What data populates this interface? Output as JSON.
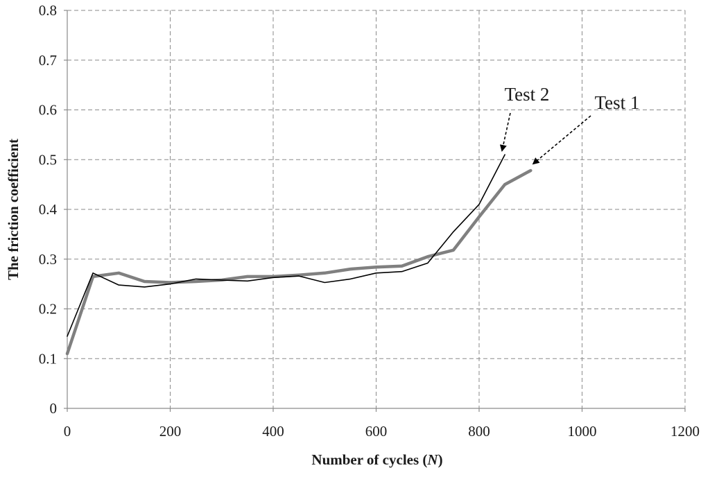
{
  "chart_data": {
    "type": "line",
    "title": "",
    "xlabel": "Number of cycles (",
    "xlabel_var": "N",
    "xlabel_end": ")",
    "ylabel": "The friction coefficient",
    "xlim": [
      0,
      1200
    ],
    "ylim": [
      0,
      0.8
    ],
    "xticks": [
      0,
      200,
      400,
      600,
      800,
      1000,
      1200
    ],
    "yticks": [
      0,
      0.1,
      0.2,
      0.3,
      0.4,
      0.5,
      0.6,
      0.7,
      0.8
    ],
    "xtick_labels": [
      "0",
      "200",
      "400",
      "600",
      "800",
      "1000",
      "1200"
    ],
    "ytick_labels": [
      "0",
      "0.1",
      "0.2",
      "0.3",
      "0.4",
      "0.5",
      "0.6",
      "0.7",
      "0.8"
    ],
    "grid": true,
    "legend": "none",
    "series": [
      {
        "name": "Test 1",
        "color": "#808080",
        "x": [
          0,
          50,
          100,
          150,
          200,
          250,
          300,
          350,
          400,
          450,
          500,
          550,
          600,
          650,
          700,
          750,
          800,
          850,
          900
        ],
        "y": [
          0.11,
          0.265,
          0.272,
          0.255,
          0.253,
          0.255,
          0.258,
          0.265,
          0.265,
          0.268,
          0.272,
          0.28,
          0.284,
          0.286,
          0.305,
          0.318,
          0.385,
          0.45,
          0.478
        ]
      },
      {
        "name": "Test 2",
        "color": "#000000",
        "x": [
          0,
          50,
          100,
          150,
          200,
          250,
          300,
          350,
          400,
          450,
          500,
          550,
          600,
          650,
          700,
          750,
          800,
          850
        ],
        "y": [
          0.145,
          0.272,
          0.248,
          0.244,
          0.25,
          0.26,
          0.258,
          0.256,
          0.263,
          0.266,
          0.253,
          0.26,
          0.272,
          0.275,
          0.292,
          0.355,
          0.41,
          0.51
        ]
      }
    ],
    "annotations": [
      {
        "text": "Test 2",
        "series": "Test 2"
      },
      {
        "text": "Test 1",
        "series": "Test 1"
      }
    ]
  }
}
